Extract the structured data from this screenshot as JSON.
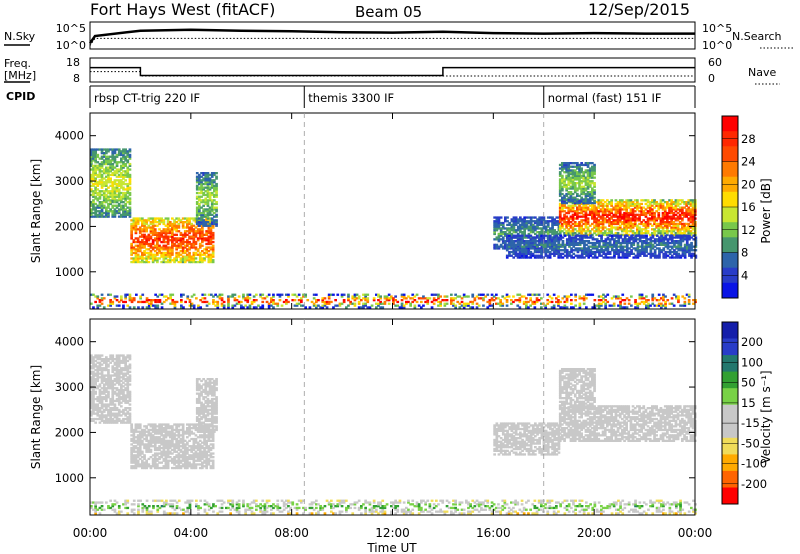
{
  "header": {
    "title": "Fort Hays West (fitACF)",
    "beam": "Beam 05",
    "date": "12/Sep/2015"
  },
  "chart_data": [
    {
      "type": "line",
      "panel": "noise",
      "left_label": "N.Sky",
      "right_label": "N.Search",
      "left_ticks": [
        "10^5",
        "10^0"
      ],
      "right_ticks": [
        "10^5",
        "10^0"
      ],
      "series": [
        {
          "name": "N.Sky",
          "x": [
            0,
            0.2,
            2,
            4,
            6,
            8,
            10,
            12,
            14,
            16,
            18,
            20,
            22,
            24
          ],
          "y": [
            1,
            2.5,
            3.6,
            3.8,
            3.6,
            3.5,
            3.3,
            3.2,
            3.4,
            3.1,
            3.0,
            3.1,
            3.0,
            3.0
          ]
        },
        {
          "name": "N.Search",
          "x": [
            0,
            0.2,
            24
          ],
          "y": [
            0.5,
            2.0,
            2.0
          ]
        }
      ]
    },
    {
      "type": "line",
      "panel": "frequency",
      "left_label": "Freq. [MHz]",
      "right_label": "Nave",
      "left_ticks": [
        "18",
        "8"
      ],
      "right_ticks": [
        "60",
        "0"
      ],
      "series": [
        {
          "name": "Freq.",
          "x": [
            0,
            2,
            2,
            14,
            14,
            24
          ],
          "y": [
            14,
            14,
            10.7,
            10.7,
            14,
            14
          ]
        },
        {
          "name": "Nave",
          "x": [
            0,
            2,
            2,
            24
          ],
          "y": [
            26,
            26,
            15,
            15
          ]
        }
      ]
    },
    {
      "type": "table",
      "panel": "cpid",
      "label": "CPID",
      "segments": [
        {
          "start": 0,
          "end": 8.5,
          "text": "rbsp CT-trig 220 IF"
        },
        {
          "start": 8.5,
          "end": 18.0,
          "text": "themis 3300 IF"
        },
        {
          "start": 18.0,
          "end": 24,
          "text": "normal (fast) 151 IF"
        }
      ]
    },
    {
      "type": "heatmap",
      "panel": "power",
      "ylabel": "Slant Range [km]",
      "ylim": [
        180,
        4500
      ],
      "yticks": [
        "1000",
        "2000",
        "3000",
        "4000"
      ],
      "colorbar_label": "Power [dB]",
      "colorbar_ticks": [
        "28",
        "24",
        "20",
        "16",
        "12",
        "8",
        "4"
      ],
      "colorbar_range": [
        0,
        32
      ],
      "colors": [
        "#0a14e6",
        "#283cc8",
        "#2d64aa",
        "#46966e",
        "#78c84b",
        "#c8e632",
        "#ffdc00",
        "#ffaa00",
        "#ff7a00",
        "#ff4a00",
        "#ff2800",
        "#ff0000"
      ],
      "regions": [
        {
          "t0": 0.0,
          "t1": 1.6,
          "r0": 2200,
          "r1": 3700,
          "v0": 8,
          "v1": 16
        },
        {
          "t0": 1.6,
          "t1": 4.9,
          "r0": 1200,
          "r1": 2200,
          "v0": 14,
          "v1": 28
        },
        {
          "t0": 4.2,
          "t1": 5.0,
          "r0": 2000,
          "r1": 3200,
          "v0": 6,
          "v1": 14
        },
        {
          "t0": 16.0,
          "t1": 18.6,
          "r0": 1500,
          "r1": 2200,
          "v0": 4,
          "v1": 10
        },
        {
          "t0": 18.6,
          "t1": 24.0,
          "r0": 1800,
          "r1": 2600,
          "v0": 12,
          "v1": 30
        },
        {
          "t0": 18.6,
          "t1": 20.0,
          "r0": 2500,
          "r1": 3400,
          "v0": 6,
          "v1": 14
        },
        {
          "t0": 16.5,
          "t1": 24.0,
          "r0": 1300,
          "r1": 1800,
          "v0": 3,
          "v1": 8
        },
        {
          "t0": 0.0,
          "t1": 24.0,
          "r0": 200,
          "r1": 500,
          "v0": 2,
          "v1": 30
        }
      ]
    },
    {
      "type": "heatmap",
      "panel": "velocity",
      "ylabel": "Slant Range [km]",
      "ylim": [
        180,
        4500
      ],
      "yticks": [
        "1000",
        "2000",
        "3000",
        "4000"
      ],
      "colorbar_label": "Velocity [m s⁻¹]",
      "colorbar_ticks": [
        "200",
        "100",
        "50",
        "15",
        "-15",
        "-50",
        "-100",
        "-200"
      ],
      "colorbar_range": [
        -250,
        250
      ],
      "colors": [
        "#ff0000",
        "#ff6400",
        "#ffaa00",
        "#f0dc5a",
        "#c8c8c8",
        "#c8c8c8",
        "#78d246",
        "#32a032",
        "#23786e",
        "#283cc8",
        "#141eaa"
      ],
      "regions": [
        {
          "t0": 0.0,
          "t1": 1.6,
          "r0": 2200,
          "r1": 3700,
          "v0": -10,
          "v1": 10
        },
        {
          "t0": 1.6,
          "t1": 4.9,
          "r0": 1200,
          "r1": 2200,
          "v0": -10,
          "v1": 10
        },
        {
          "t0": 4.2,
          "t1": 5.0,
          "r0": 2000,
          "r1": 3200,
          "v0": -10,
          "v1": 10
        },
        {
          "t0": 16.0,
          "t1": 18.6,
          "r0": 1500,
          "r1": 2200,
          "v0": -10,
          "v1": 10
        },
        {
          "t0": 18.6,
          "t1": 24.0,
          "r0": 1800,
          "r1": 2600,
          "v0": -10,
          "v1": 10
        },
        {
          "t0": 18.6,
          "t1": 20.0,
          "r0": 2500,
          "r1": 3400,
          "v0": -10,
          "v1": 10
        },
        {
          "t0": 0.0,
          "t1": 24.0,
          "r0": 200,
          "r1": 500,
          "v0": -80,
          "v1": 80
        }
      ]
    }
  ],
  "x_axis": {
    "xlabel": "Time UT",
    "ticks": [
      "00:00",
      "04:00",
      "08:00",
      "12:00",
      "16:00",
      "20:00",
      "00:00"
    ],
    "xlim": [
      0,
      24
    ]
  }
}
